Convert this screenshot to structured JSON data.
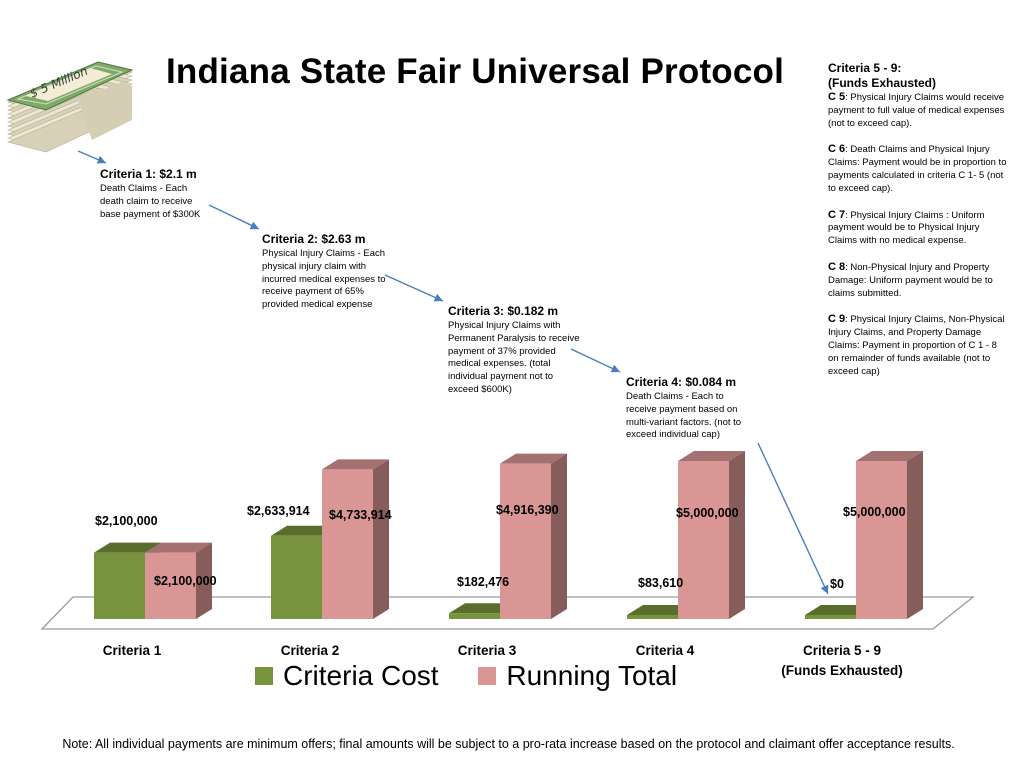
{
  "title": "Indiana State Fair Universal Protocol",
  "money_stack": {
    "label": "$ 5 Million"
  },
  "criteria_notes": [
    {
      "heading": "Criteria 1: $2.1 m",
      "lines": [
        "Death Claims - Each",
        "death claim to receive",
        "base payment of $300K"
      ]
    },
    {
      "heading": "Criteria 2: $2.63 m",
      "lines": [
        "Physical Injury Claims - Each",
        "physical injury claim with",
        "incurred medical expenses to",
        "receive payment of 65%",
        "provided medical expense"
      ]
    },
    {
      "heading": "Criteria 3:  $0.182 m",
      "lines": [
        "Physical Injury Claims with",
        "Permanent Paralysis to receive",
        "payment of 37% provided",
        "medical expenses. (total",
        "individual payment not to",
        "exceed $600K)"
      ]
    },
    {
      "heading": "Criteria 4: $0.084 m",
      "lines": [
        "Death Claims - Each to",
        "receive payment based on",
        "multi-variant factors.  (not to",
        "exceed individual cap)"
      ]
    }
  ],
  "side_panel": {
    "heading_line1": "Criteria 5 - 9:",
    "heading_line2": "(Funds Exhausted)",
    "items": [
      {
        "code": "C 5",
        "text": ": Physical Injury Claims would receive payment to full value of medical expenses (not to exceed cap)."
      },
      {
        "code": "C 6",
        "text": ": Death Claims and Physical Injury Claims:  Payment would be in proportion to payments calculated in criteria C 1- 5 (not to exceed cap)."
      },
      {
        "code": "C 7",
        "text": ": Physical Injury Claims : Uniform payment would be to Physical Injury Claims with no medical expense."
      },
      {
        "code": "C 8",
        "text": ": Non-Physical Injury and Property Damage: Uniform payment would be to claims submitted."
      },
      {
        "code": "C 9",
        "text": ": Physical Injury Claims, Non-Physical Injury Claims, and Property Damage Claims: Payment in proportion of C 1 - 8 on remainder of funds available (not to exceed cap)"
      }
    ]
  },
  "chart_data": {
    "type": "bar",
    "title": "Indiana State Fair Universal Protocol",
    "categories": [
      "Criteria 1",
      "Criteria 2",
      "Criteria 3",
      "Criteria 4",
      "Criteria 5 - 9"
    ],
    "category_sublabels": [
      "",
      "",
      "",
      "",
      "(Funds Exhausted)"
    ],
    "series": [
      {
        "name": "Criteria Cost",
        "color": "#77933c",
        "values": [
          2100000,
          2633914,
          182476,
          83610,
          0
        ],
        "labels": [
          "$2,100,000",
          "$2,633,914",
          "$182,476",
          "$83,610",
          "$0"
        ]
      },
      {
        "name": "Running Total",
        "color": "#d99694",
        "values": [
          2100000,
          4733914,
          4916390,
          5000000,
          5000000
        ],
        "labels": [
          "$2,100,000",
          "$4,733,914",
          "$4,916,390",
          "$5,000,000",
          "$5,000,000"
        ]
      }
    ],
    "ylim": [
      0,
      5000000
    ],
    "grid": false,
    "legend": "bottom",
    "style": "3d-column"
  },
  "footnote": "Note: All individual payments are minimum offers; final amounts will be subject to a pro-rata increase based on the protocol and claimant offer acceptance results."
}
